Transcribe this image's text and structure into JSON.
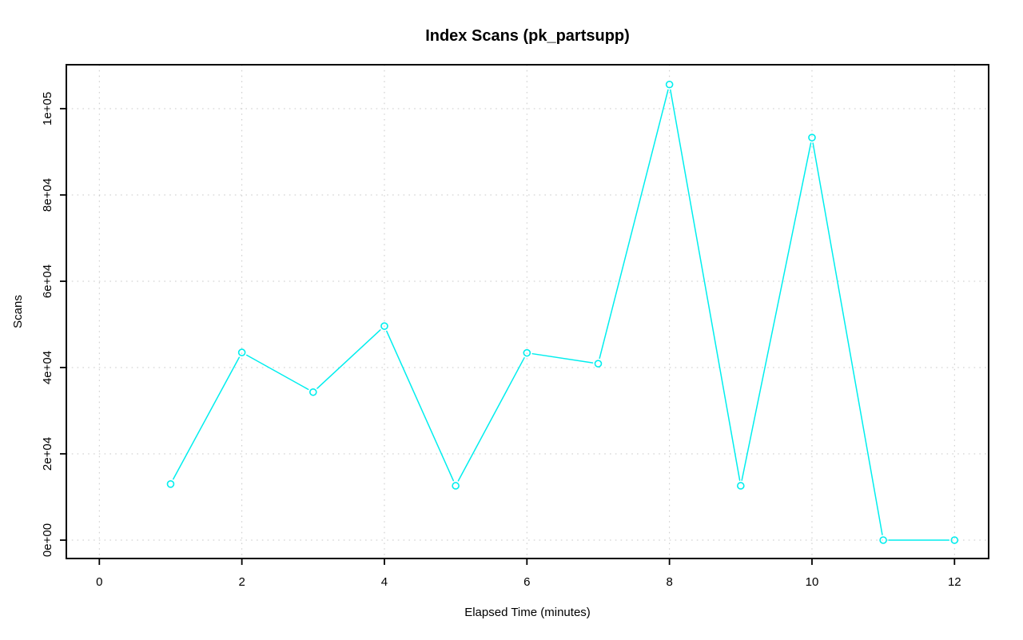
{
  "chart_data": {
    "type": "line",
    "title": "Index Scans (pk_partsupp)",
    "xlabel": "Elapsed Time (minutes)",
    "ylabel": "Scans",
    "x": [
      1,
      2,
      3,
      4,
      5,
      6,
      7,
      8,
      9,
      10,
      11,
      12
    ],
    "values": [
      13000,
      43500,
      34300,
      49600,
      12600,
      43400,
      40900,
      105600,
      12600,
      93300,
      0,
      0
    ],
    "xticks": [
      0,
      2,
      4,
      6,
      8,
      10,
      12
    ],
    "yticks": [
      0,
      20000,
      40000,
      60000,
      80000,
      100000
    ],
    "ytick_labels": [
      "0e+00",
      "2e+04",
      "4e+04",
      "6e+04",
      "8e+04",
      "1e+05"
    ],
    "xlim": [
      -0.46,
      12.48
    ],
    "ylim": [
      -4300,
      110200
    ],
    "grid": "dotted",
    "legend_position": "none",
    "marker": "open-circle",
    "colors": {
      "line": "#00EEEE",
      "grid": "#C8C8C8",
      "axis": "#000000",
      "background": "#FFFFFF"
    }
  }
}
